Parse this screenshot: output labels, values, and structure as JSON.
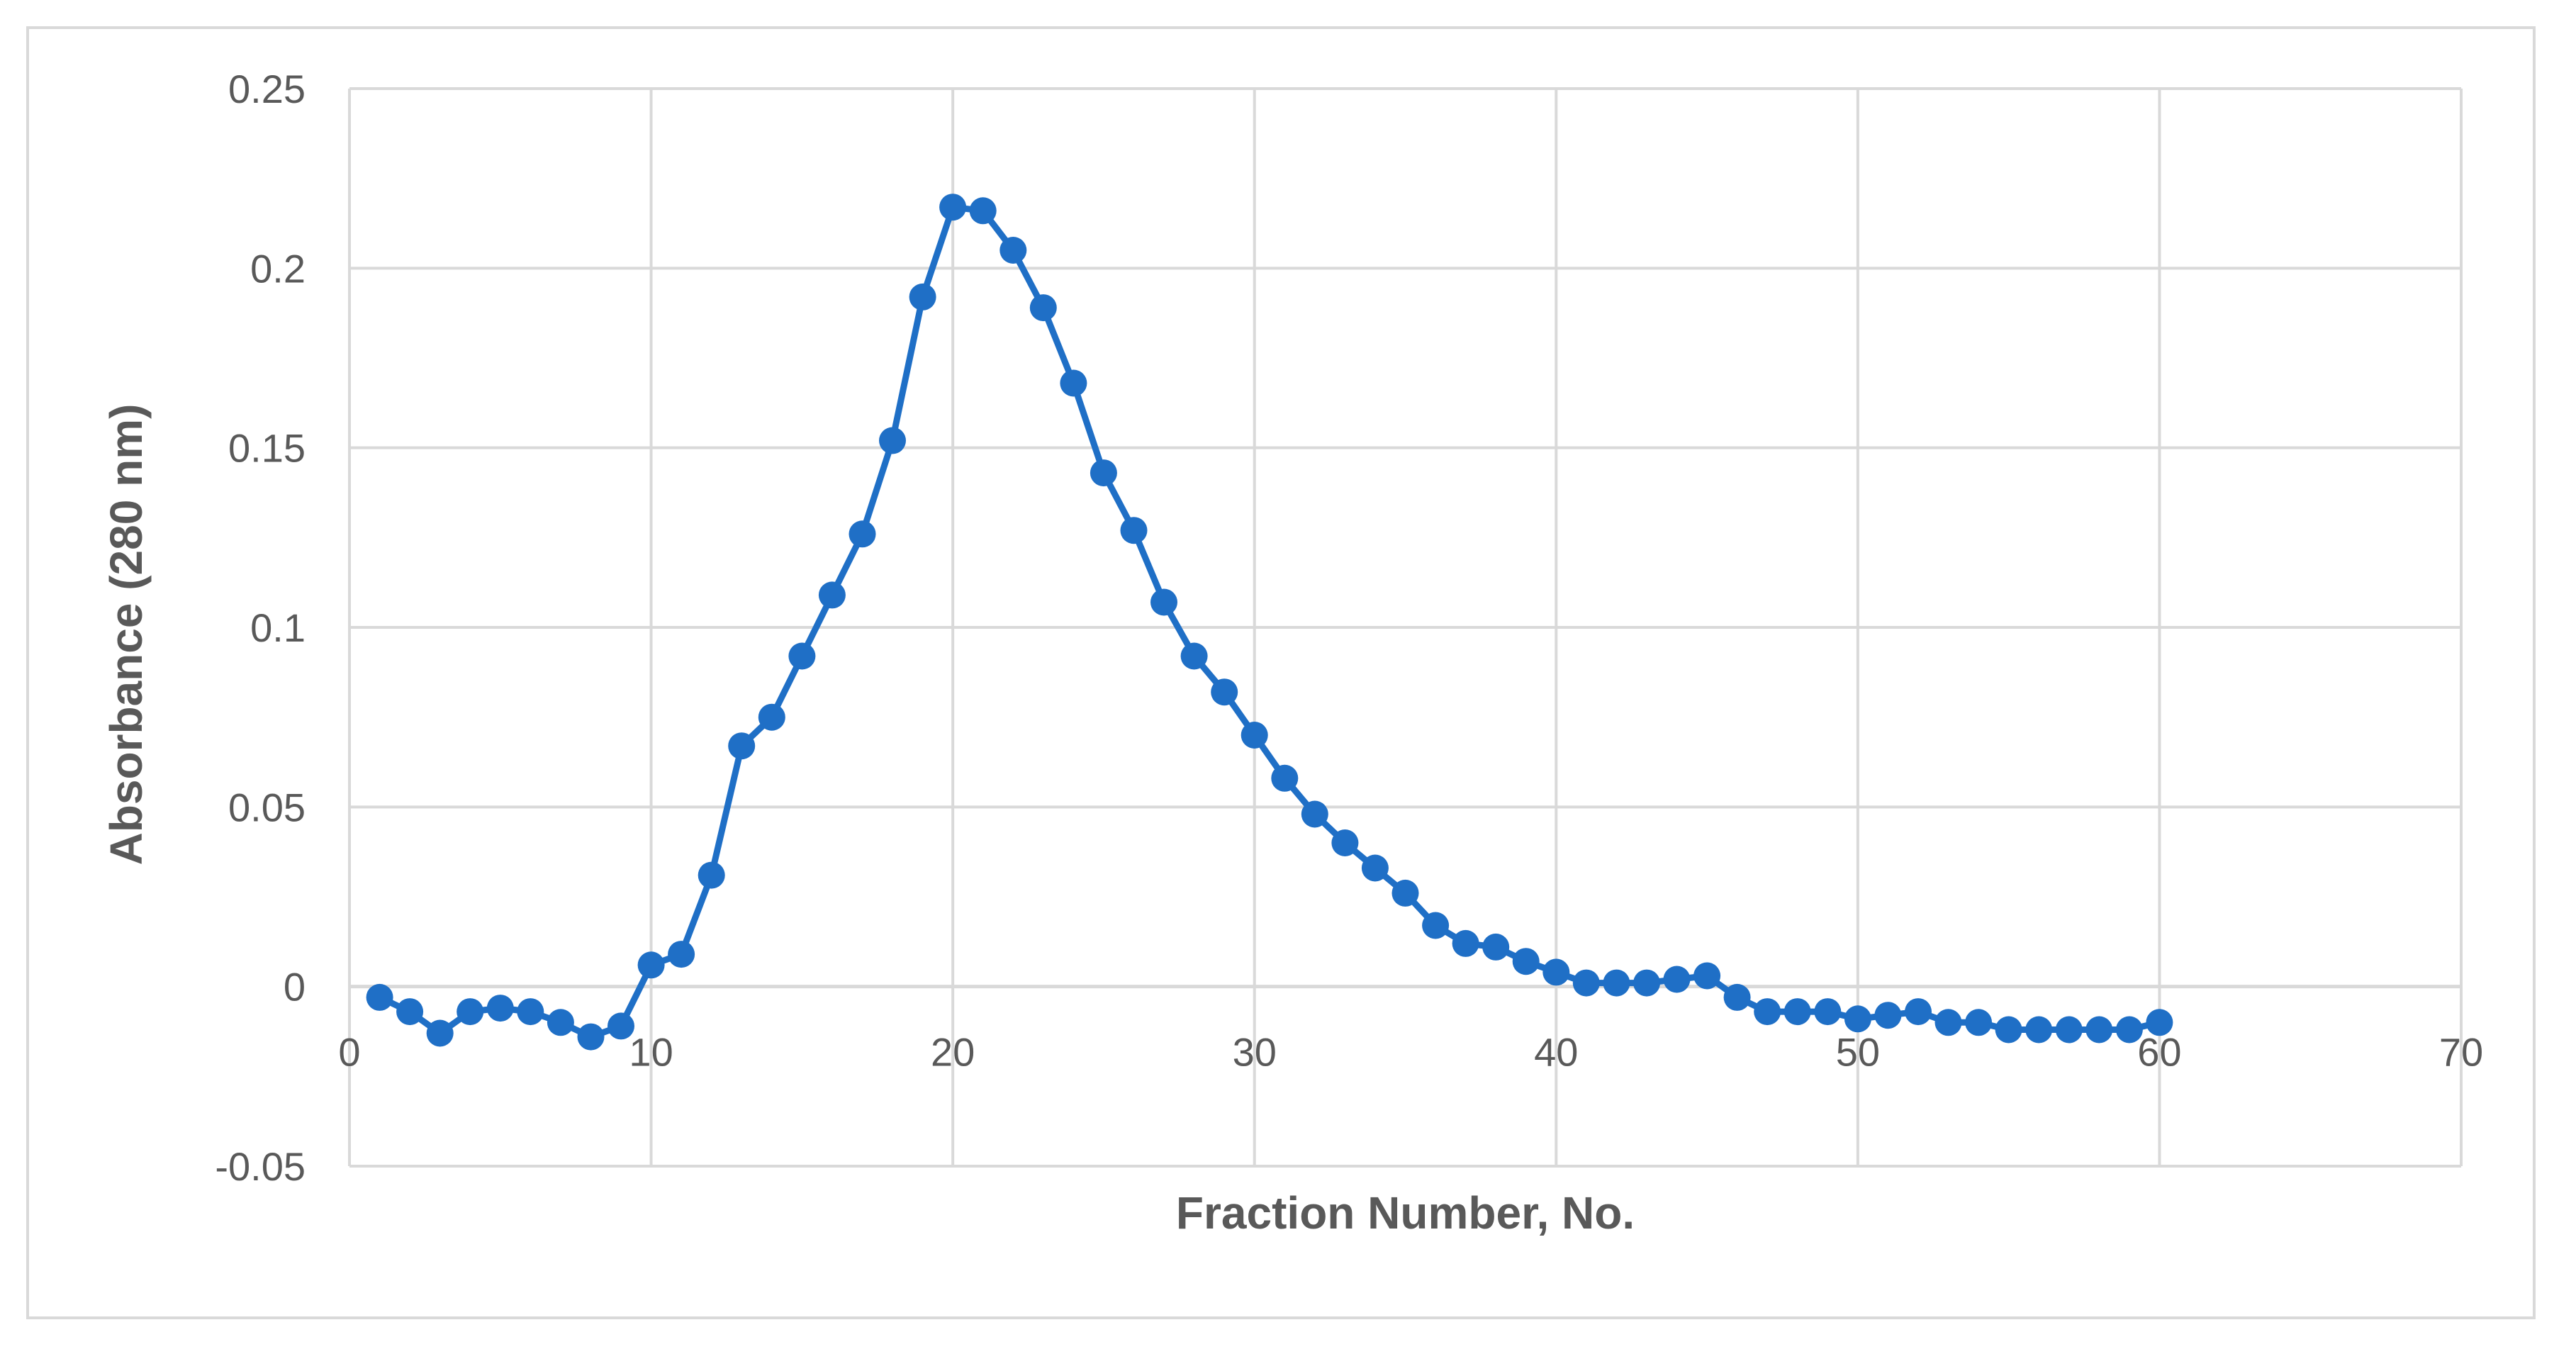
{
  "chart_data": {
    "type": "scatter",
    "title": "",
    "xlabel": "Fraction Number, No.",
    "ylabel": "Absorbance (280 nm)",
    "xlim": [
      0,
      70
    ],
    "ylim": [
      -0.05,
      0.25
    ],
    "x_ticks": [
      0,
      10,
      20,
      30,
      40,
      50,
      60,
      70
    ],
    "y_ticks": [
      -0.05,
      0,
      0.05,
      0.1,
      0.15,
      0.2,
      0.25
    ],
    "x_tick_labels": [
      "0",
      "10",
      "20",
      "30",
      "40",
      "50",
      "60",
      "70"
    ],
    "y_tick_labels": [
      "-0.05",
      "0",
      "0.05",
      "0.1",
      "0.15",
      "0.2",
      "0.25"
    ],
    "grid": true,
    "legend": false,
    "colors": {
      "series": "#1f6fc6",
      "grid": "#d9d9d9",
      "text": "#595959"
    },
    "series": [
      {
        "x": [
          1,
          2,
          3,
          4,
          5,
          6,
          7,
          8,
          9,
          10,
          11,
          12,
          13,
          14,
          15,
          16,
          17,
          18,
          19,
          20,
          21,
          22,
          23,
          24,
          25,
          26,
          27,
          28,
          29,
          30,
          31,
          32,
          33,
          34,
          35,
          36,
          37,
          38,
          39,
          40,
          41,
          42,
          43,
          44,
          45,
          46,
          47,
          48,
          49,
          50,
          51,
          52,
          53,
          54,
          55,
          56,
          57,
          58,
          59,
          60
        ],
        "values": [
          -0.003,
          -0.007,
          -0.013,
          -0.007,
          -0.006,
          -0.007,
          -0.01,
          -0.014,
          -0.011,
          0.006,
          0.009,
          0.031,
          0.067,
          0.075,
          0.092,
          0.109,
          0.126,
          0.152,
          0.192,
          0.217,
          0.216,
          0.205,
          0.189,
          0.168,
          0.143,
          0.127,
          0.107,
          0.092,
          0.082,
          0.07,
          0.058,
          0.048,
          0.04,
          0.033,
          0.026,
          0.017,
          0.012,
          0.011,
          0.007,
          0.004,
          0.001,
          0.001,
          0.001,
          0.002,
          0.003,
          -0.003,
          -0.007,
          -0.007,
          -0.007,
          -0.009,
          -0.008,
          -0.007,
          -0.01,
          -0.01,
          -0.012,
          -0.012,
          -0.012,
          -0.012,
          -0.012,
          -0.01
        ]
      }
    ]
  }
}
